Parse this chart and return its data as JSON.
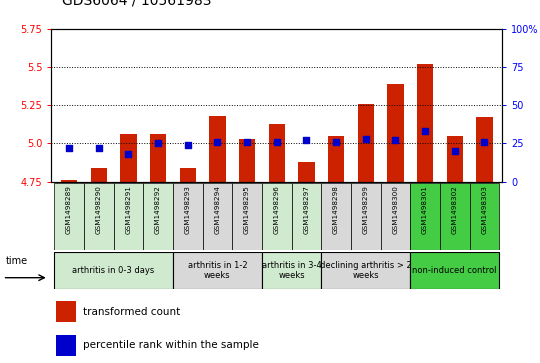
{
  "title": "GDS6064 / 10561983",
  "samples": [
    "GSM1498289",
    "GSM1498290",
    "GSM1498291",
    "GSM1498292",
    "GSM1498293",
    "GSM1498294",
    "GSM1498295",
    "GSM1498296",
    "GSM1498297",
    "GSM1498298",
    "GSM1498299",
    "GSM1498300",
    "GSM1498301",
    "GSM1498302",
    "GSM1498303"
  ],
  "bar_values": [
    4.76,
    4.84,
    5.06,
    5.06,
    4.84,
    5.18,
    5.03,
    5.13,
    4.88,
    5.05,
    5.26,
    5.39,
    5.52,
    5.05,
    5.17
  ],
  "percentile_values": [
    22,
    22,
    18,
    25,
    24,
    26,
    26,
    26,
    27,
    26,
    28,
    27,
    33,
    20,
    26
  ],
  "ylim_left": [
    4.75,
    5.75
  ],
  "ylim_right": [
    0,
    100
  ],
  "yticks_left": [
    4.75,
    5.0,
    5.25,
    5.5,
    5.75
  ],
  "yticks_right": [
    0,
    25,
    50,
    75,
    100
  ],
  "bar_color": "#cc2200",
  "dot_color": "#0000cc",
  "bar_bottom": 4.75,
  "groups": [
    {
      "label": "arthritis in 0-3 days",
      "start": 0,
      "end": 4,
      "color": "#d0ead0"
    },
    {
      "label": "arthritis in 1-2\nweeks",
      "start": 4,
      "end": 7,
      "color": "#d8d8d8"
    },
    {
      "label": "arthritis in 3-4\nweeks",
      "start": 7,
      "end": 9,
      "color": "#d0ead0"
    },
    {
      "label": "declining arthritis > 2\nweeks",
      "start": 9,
      "end": 12,
      "color": "#d8d8d8"
    },
    {
      "label": "non-induced control",
      "start": 12,
      "end": 15,
      "color": "#44cc44"
    }
  ],
  "sample_col_colors": [
    "#d0ead0",
    "#d0ead0",
    "#d0ead0",
    "#d0ead0",
    "#d8d8d8",
    "#d8d8d8",
    "#d8d8d8",
    "#d0ead0",
    "#d0ead0",
    "#d8d8d8",
    "#d8d8d8",
    "#d8d8d8",
    "#44cc44",
    "#44cc44",
    "#44cc44"
  ],
  "legend_bar_label": "transformed count",
  "legend_dot_label": "percentile rank within the sample",
  "title_fontsize": 10,
  "tick_fontsize": 7,
  "label_fontsize": 7
}
